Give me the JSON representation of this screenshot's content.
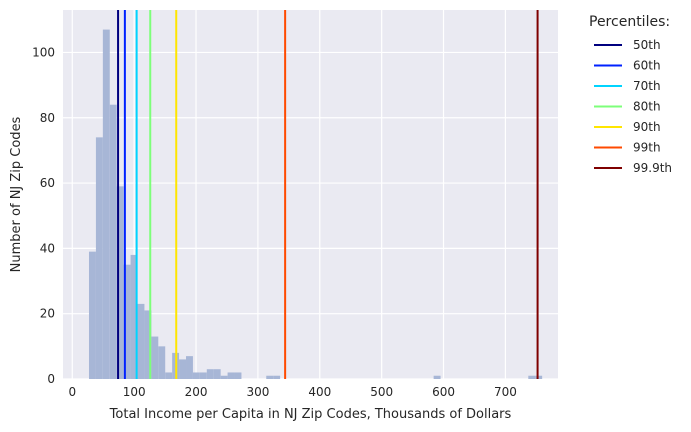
{
  "chart_data": {
    "type": "bar",
    "title": "",
    "xlabel": "Total Income per Capita in NJ Zip Codes, Thousands of Dollars",
    "ylabel": "Number of NJ Zip Codes",
    "xlim": [
      -15,
      785
    ],
    "ylim": [
      0,
      113
    ],
    "xticks": [
      0,
      100,
      200,
      300,
      400,
      500,
      600,
      700
    ],
    "yticks": [
      0,
      20,
      40,
      60,
      80,
      100
    ],
    "grid": true,
    "background": "#eaeaf2",
    "bar_color": "#a7b6d6",
    "histogram": {
      "bin_width": 11.2,
      "bins": [
        {
          "x0": 27.0,
          "count": 39
        },
        {
          "x0": 38.2,
          "count": 74
        },
        {
          "x0": 49.4,
          "count": 107
        },
        {
          "x0": 60.6,
          "count": 84
        },
        {
          "x0": 71.8,
          "count": 59
        },
        {
          "x0": 83.0,
          "count": 35
        },
        {
          "x0": 94.2,
          "count": 38
        },
        {
          "x0": 105.4,
          "count": 23
        },
        {
          "x0": 116.6,
          "count": 21
        },
        {
          "x0": 127.8,
          "count": 13
        },
        {
          "x0": 139.0,
          "count": 10
        },
        {
          "x0": 150.2,
          "count": 2
        },
        {
          "x0": 161.4,
          "count": 8
        },
        {
          "x0": 172.6,
          "count": 6
        },
        {
          "x0": 183.8,
          "count": 7
        },
        {
          "x0": 195.0,
          "count": 2
        },
        {
          "x0": 206.2,
          "count": 2
        },
        {
          "x0": 217.4,
          "count": 3
        },
        {
          "x0": 228.6,
          "count": 3
        },
        {
          "x0": 239.8,
          "count": 1
        },
        {
          "x0": 251.0,
          "count": 2
        },
        {
          "x0": 262.2,
          "count": 2
        },
        {
          "x0": 313.5,
          "count": 1
        },
        {
          "x0": 324.7,
          "count": 1
        },
        {
          "x0": 584.0,
          "count": 1
        },
        {
          "x0": 737.0,
          "count": 1
        },
        {
          "x0": 748.2,
          "count": 1
        }
      ]
    },
    "legend": {
      "title": "Percentiles:",
      "placement": "outside-right",
      "entries": [
        {
          "label": "50th",
          "value": 74,
          "color": "#00007f"
        },
        {
          "label": "60th",
          "value": 85,
          "color": "#0022ff"
        },
        {
          "label": "70th",
          "value": 104,
          "color": "#00d4ff"
        },
        {
          "label": "80th",
          "value": 126,
          "color": "#7dff7a"
        },
        {
          "label": "90th",
          "value": 168,
          "color": "#ffe600"
        },
        {
          "label": "99th",
          "value": 344,
          "color": "#ff4a00"
        },
        {
          "label": "99.9th",
          "value": 752,
          "color": "#7f0000"
        }
      ]
    }
  }
}
